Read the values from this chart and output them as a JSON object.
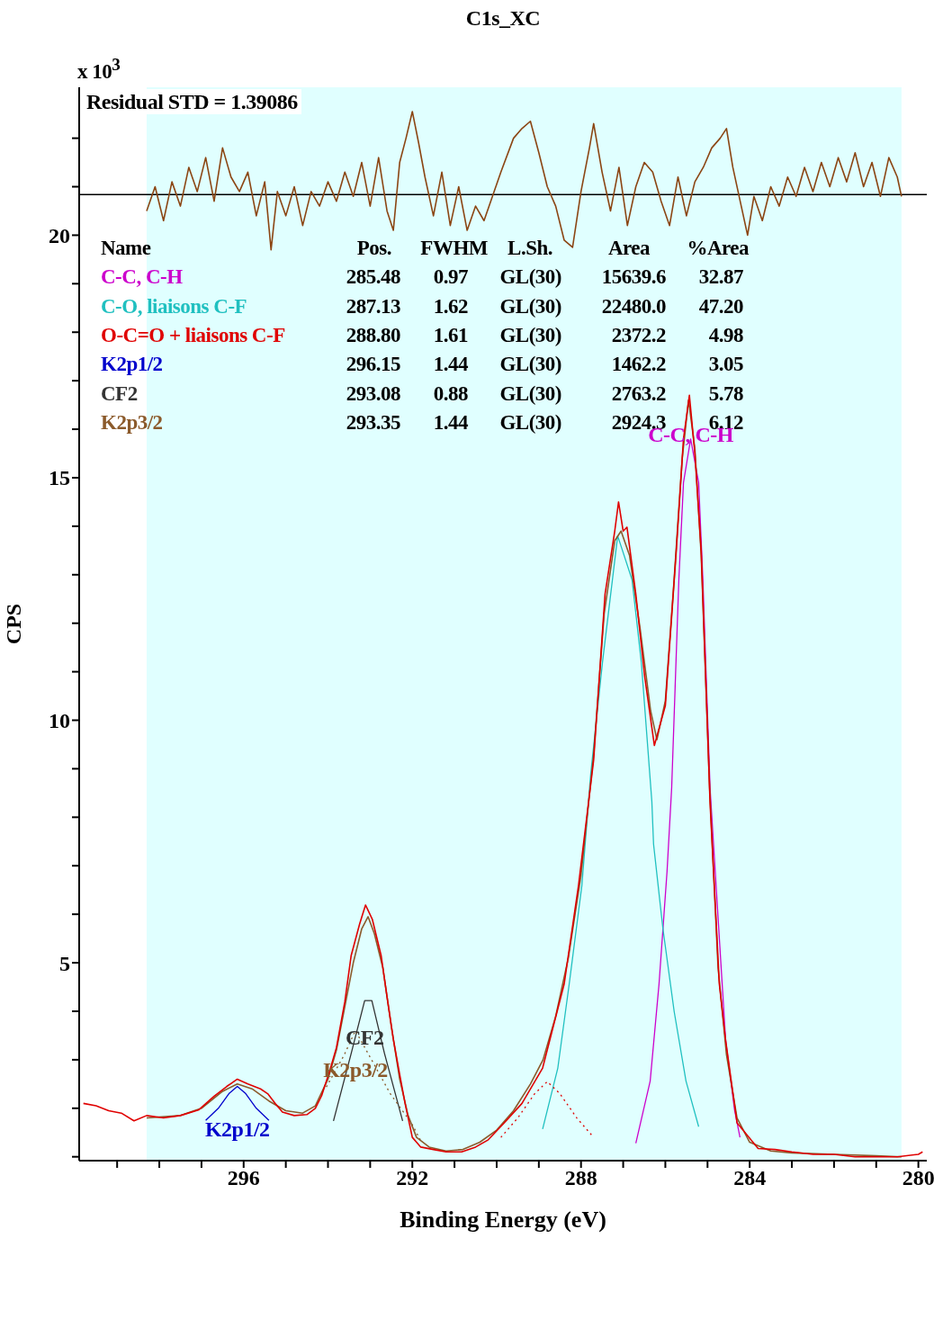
{
  "chart_data": {
    "type": "line",
    "title": "C1s_XC",
    "xlabel": "Binding Energy (eV)",
    "ylabel": "CPS",
    "xlim": [
      299.9,
      279.8
    ],
    "ylim": [
      0.92,
      23.05
    ],
    "xticks": [
      {
        "value": 299,
        "label": null
      },
      {
        "value": 298,
        "label": null
      },
      {
        "value": 297,
        "label": null
      },
      296,
      {
        "value": 295,
        "label": null
      },
      {
        "value": 294,
        "label": null
      },
      {
        "value": 293,
        "label": null
      },
      292,
      {
        "value": 291,
        "label": null
      },
      {
        "value": 290,
        "label": null
      },
      {
        "value": 289,
        "label": null
      },
      288,
      {
        "value": 287,
        "label": null
      },
      {
        "value": 286,
        "label": null
      },
      {
        "value": 285,
        "label": null
      },
      284,
      {
        "value": 283,
        "label": null
      },
      {
        "value": 282,
        "label": null
      },
      {
        "value": 281,
        "label": null
      },
      280
    ],
    "yticks": [
      {
        "value": 1,
        "label": null
      },
      {
        "value": 2,
        "label": null
      },
      {
        "value": 3,
        "label": null
      },
      {
        "value": 4,
        "label": null
      },
      5,
      {
        "value": 6,
        "label": null
      },
      {
        "value": 7,
        "label": null
      },
      {
        "value": 8,
        "label": null
      },
      {
        "value": 9,
        "label": null
      },
      10,
      {
        "value": 11,
        "label": null
      },
      {
        "value": 12,
        "label": null
      },
      {
        "value": 13,
        "label": null
      },
      {
        "value": 14,
        "label": null
      },
      15,
      {
        "value": 16,
        "label": null
      },
      {
        "value": 17,
        "label": null
      },
      {
        "value": 18,
        "label": null
      },
      {
        "value": 19,
        "label": null
      },
      20,
      {
        "value": 21,
        "label": null
      },
      {
        "value": 22,
        "label": null
      }
    ],
    "bands": [
      {
        "axis": "x",
        "from": 298.3,
        "to": 280.4,
        "color": "#e0ffff"
      }
    ],
    "ref_lines": [
      {
        "axis": "y",
        "value": 20.84,
        "color": "#000000"
      }
    ],
    "annotations": [
      "x 10$^{3}$",
      "Residual STD = 1.39086",
      "Name",
      "Pos.",
      "FWHM",
      "L.Sh.",
      "Area",
      "%Area",
      "285.48",
      "0.97",
      "GL(30)",
      "15639.6",
      "32.87",
      "287.13",
      "1.62",
      "GL(30)",
      "22480.0",
      "47.20",
      "288.80",
      "1.61",
      "GL(30)",
      "2372.2",
      "4.98",
      "296.15",
      "1.44",
      "GL(30)",
      "1462.2",
      "3.05",
      "293.08",
      "0.88",
      "GL(30)",
      "2763.2",
      "5.78",
      "293.35",
      "1.44",
      "GL(30)",
      "2924.3",
      "6.12",
      {
        "text": "C-C, C-H",
        "x": 285.4,
        "y": 15.8
      },
      {
        "text": "CF2",
        "x": 293.13,
        "y": 4.22
      },
      {
        "text": "K2p3/2",
        "x": 293.35,
        "y": 3.6
      },
      {
        "text": "K2p1/2",
        "x": 296.15,
        "y": 2.45
      }
    ],
    "series": [
      {
        "name": "C-C, C-H",
        "color": "#cc00cc",
        "x": [
          286.7,
          286.36,
          286.15,
          285.96,
          285.85,
          285.68,
          285.57,
          285.4,
          285.21,
          285.11,
          284.94,
          284.57,
          284.36,
          284.23
        ],
        "values": [
          1.28,
          2.56,
          4.56,
          6.88,
          8.61,
          12.9,
          14.9,
          15.8,
          14.9,
          12.9,
          8.61,
          3.4,
          1.97,
          1.4
        ]
      },
      {
        "name": "C-O, liaisons C-F",
        "color": "#20c0c0",
        "x": [
          288.91,
          288.55,
          288.28,
          287.98,
          287.77,
          287.49,
          287.13,
          286.79,
          286.57,
          286.32,
          286.28,
          286.06,
          285.79,
          285.51,
          285.21
        ],
        "values": [
          1.57,
          2.83,
          4.56,
          6.59,
          8.89,
          11.2,
          13.8,
          12.9,
          11.2,
          8.32,
          7.45,
          5.72,
          3.99,
          2.56,
          1.62
        ]
      },
      {
        "name": "O-C=O + liaisons C-F",
        "color": "#e00000",
        "line_style": "dotted",
        "x": [
          289.9,
          289.5,
          289.1,
          288.8,
          288.5,
          288.1,
          287.7
        ],
        "values": [
          1.4,
          1.8,
          2.3,
          2.55,
          2.3,
          1.8,
          1.4
        ]
      },
      {
        "name": "K2p1/2",
        "color": "#0000cc",
        "x": [
          296.9,
          296.6,
          296.35,
          296.15,
          295.95,
          295.7,
          295.4
        ],
        "values": [
          1.75,
          2.0,
          2.3,
          2.45,
          2.3,
          2.0,
          1.75
        ]
      },
      {
        "name": "CF2",
        "color": "#333333",
        "x": [
          293.87,
          293.45,
          293.13,
          292.96,
          292.66,
          292.23
        ],
        "values": [
          1.74,
          3.13,
          4.22,
          4.22,
          3.13,
          1.74
        ]
      },
      {
        "name": "K2p3/2",
        "color": "#8b5a2b",
        "line_style": "dotted",
        "x": [
          294.04,
          293.62,
          293.35,
          292.96,
          292.53,
          292.02,
          291.81
        ],
        "values": [
          2.44,
          3.09,
          3.6,
          2.99,
          2.31,
          1.69,
          1.35
        ]
      },
      {
        "color": "#8b5a2b",
        "x": [
          298.3,
          297.5,
          297.0,
          296.5,
          296.15,
          295.8,
          295.4,
          295.0,
          294.6,
          294.3,
          294.0,
          293.8,
          293.6,
          293.4,
          293.2,
          293.05,
          292.9,
          292.7,
          292.5,
          292.3,
          292.1,
          291.9,
          291.6,
          291.2,
          290.8,
          290.4,
          290.0,
          289.6,
          289.2,
          288.9,
          288.6,
          288.3,
          288.0,
          287.7,
          287.45,
          287.2,
          287.05,
          286.85,
          286.6,
          286.35,
          286.2,
          286.0,
          285.8,
          285.6,
          285.45,
          285.3,
          285.15,
          284.95,
          284.75,
          284.55,
          284.3,
          284.0,
          283.5,
          283.0,
          282.0,
          281.0,
          280.4
        ],
        "values": [
          1.8,
          1.85,
          2.0,
          2.35,
          2.5,
          2.4,
          2.15,
          1.95,
          1.9,
          2.05,
          2.6,
          3.2,
          4.1,
          5.0,
          5.7,
          5.95,
          5.6,
          4.9,
          3.7,
          2.6,
          1.85,
          1.4,
          1.2,
          1.12,
          1.15,
          1.3,
          1.55,
          1.95,
          2.5,
          3.0,
          3.9,
          5.1,
          6.8,
          9.3,
          12.2,
          13.7,
          13.9,
          13.4,
          11.9,
          10.2,
          9.6,
          10.4,
          12.8,
          15.4,
          16.6,
          15.6,
          13.4,
          8.6,
          4.9,
          3.1,
          1.8,
          1.3,
          1.12,
          1.08,
          1.05,
          1.02,
          1.0
        ]
      },
      {
        "color": "#e00000",
        "x": [
          299.8,
          299.5,
          299.2,
          298.9,
          298.6,
          298.3,
          297.9,
          297.5,
          297.06,
          296.7,
          296.4,
          296.15,
          295.9,
          295.6,
          295.43,
          295.25,
          295.08,
          294.8,
          294.5,
          294.3,
          294.15,
          293.95,
          293.8,
          293.6,
          293.45,
          293.25,
          293.11,
          292.95,
          292.74,
          292.6,
          292.45,
          292.3,
          292.17,
          292.0,
          291.8,
          291.5,
          291.2,
          290.83,
          290.5,
          290.2,
          289.83,
          289.4,
          288.91,
          288.4,
          288.06,
          287.7,
          287.43,
          287.2,
          287.11,
          287.0,
          286.91,
          286.7,
          286.49,
          286.26,
          286.0,
          285.74,
          285.57,
          285.43,
          285.3,
          285.15,
          284.94,
          284.72,
          284.57,
          284.3,
          283.8,
          283.4,
          283.0,
          282.5,
          282.0,
          281.5,
          281.0,
          280.5,
          280.0,
          279.9
        ],
        "values": [
          2.1,
          2.05,
          1.95,
          1.9,
          1.74,
          1.85,
          1.8,
          1.85,
          1.97,
          2.25,
          2.45,
          2.6,
          2.5,
          2.4,
          2.3,
          2.1,
          1.92,
          1.85,
          1.87,
          2.0,
          2.26,
          2.8,
          3.25,
          4.2,
          5.15,
          5.8,
          6.19,
          5.9,
          5.15,
          4.3,
          3.42,
          2.7,
          2.09,
          1.4,
          1.2,
          1.15,
          1.1,
          1.1,
          1.2,
          1.35,
          1.69,
          2.1,
          2.83,
          4.56,
          6.59,
          9.18,
          12.6,
          13.9,
          14.5,
          13.9,
          13.98,
          12.6,
          10.9,
          9.48,
          10.3,
          13.5,
          15.8,
          16.7,
          15.5,
          13.5,
          8.3,
          4.56,
          3.4,
          1.7,
          1.17,
          1.15,
          1.1,
          1.05,
          1.05,
          1.0,
          1.0,
          1.0,
          1.05,
          1.1
        ]
      },
      {
        "color": "#8b4513",
        "x": [
          298.3,
          298.1,
          297.9,
          297.7,
          297.5,
          297.3,
          297.1,
          296.9,
          296.7,
          296.5,
          296.3,
          296.1,
          295.9,
          295.7,
          295.5,
          295.35,
          295.2,
          295.0,
          294.8,
          294.6,
          294.4,
          294.2,
          294.0,
          293.8,
          293.6,
          293.4,
          293.2,
          293.0,
          292.8,
          292.6,
          292.45,
          292.3,
          292.15,
          292.0,
          291.85,
          291.7,
          291.5,
          291.3,
          291.1,
          290.9,
          290.7,
          290.5,
          290.3,
          290.1,
          289.9,
          289.6,
          289.4,
          289.2,
          289.0,
          288.8,
          288.6,
          288.4,
          288.2,
          288.0,
          287.8,
          287.7,
          287.5,
          287.3,
          287.1,
          286.9,
          286.7,
          286.5,
          286.3,
          286.1,
          285.9,
          285.7,
          285.5,
          285.3,
          285.1,
          284.9,
          284.7,
          284.55,
          284.4,
          284.2,
          284.05,
          283.9,
          283.7,
          283.5,
          283.3,
          283.1,
          282.9,
          282.7,
          282.5,
          282.3,
          282.1,
          281.9,
          281.7,
          281.5,
          281.3,
          281.1,
          280.9,
          280.7,
          280.5,
          280.4
        ],
        "values": [
          20.5,
          21.0,
          20.3,
          21.1,
          20.6,
          21.4,
          20.9,
          21.6,
          20.7,
          21.8,
          21.2,
          20.9,
          21.3,
          20.4,
          21.1,
          19.7,
          20.9,
          20.4,
          21.0,
          20.2,
          20.9,
          20.6,
          21.1,
          20.7,
          21.3,
          20.8,
          21.5,
          20.6,
          21.6,
          20.5,
          20.1,
          21.5,
          22.0,
          22.55,
          21.9,
          21.2,
          20.4,
          21.3,
          20.2,
          21.0,
          20.1,
          20.6,
          20.3,
          20.8,
          21.3,
          22.0,
          22.2,
          22.35,
          21.7,
          21.0,
          20.6,
          19.9,
          19.75,
          20.9,
          21.8,
          22.3,
          21.3,
          20.5,
          21.4,
          20.2,
          21.0,
          21.5,
          21.3,
          20.7,
          20.2,
          21.2,
          20.4,
          21.1,
          21.4,
          21.8,
          22.0,
          22.2,
          21.4,
          20.6,
          20.0,
          20.8,
          20.3,
          21.0,
          20.6,
          21.2,
          20.8,
          21.4,
          20.9,
          21.5,
          21.0,
          21.6,
          21.1,
          21.7,
          21.0,
          21.5,
          20.8,
          21.6,
          21.2,
          20.8
        ]
      }
    ]
  }
}
